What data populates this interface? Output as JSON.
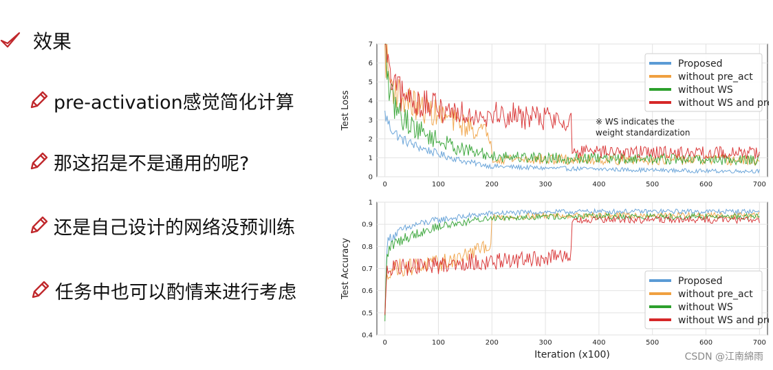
{
  "heading": {
    "text": "效果"
  },
  "bullets": [
    {
      "text": "pre-activation感觉简化计算"
    },
    {
      "text": "那这招是不是通用的呢?"
    },
    {
      "text": "还是自己设计的网络没预训练"
    },
    {
      "text": "任务中也可以酌情来进行考虑"
    }
  ],
  "watermark": "CSDN @江南綿雨",
  "colors": {
    "Proposed": "#5b9bd5",
    "without pre_act": "#f0a040",
    "without WS": "#2ca02c",
    "without WS and pre_act": "#d62728",
    "icon": "#c0282c"
  },
  "chart_data": [
    {
      "type": "line",
      "ylabel": "Test Loss",
      "xlabel": "",
      "xlim": [
        -15,
        715
      ],
      "ylim": [
        0,
        7
      ],
      "xticks": [
        0,
        100,
        200,
        300,
        400,
        500,
        600,
        700
      ],
      "yticks": [
        0,
        1,
        2,
        3,
        4,
        5,
        6,
        7
      ],
      "grid": true,
      "legend": "top-right",
      "annotation": [
        "※ WS indicates the",
        "weight standardization"
      ],
      "series": [
        {
          "name": "Proposed",
          "x": [
            0,
            10,
            30,
            60,
            100,
            150,
            200,
            300,
            400,
            500,
            600,
            700
          ],
          "y": [
            3.3,
            2.6,
            2.0,
            1.6,
            1.2,
            0.8,
            0.55,
            0.45,
            0.4,
            0.35,
            0.3,
            0.3
          ]
        },
        {
          "name": "without pre_act",
          "x": [
            0,
            10,
            30,
            60,
            100,
            150,
            199,
            200,
            300,
            400,
            500,
            600,
            700
          ],
          "y": [
            6.8,
            5.0,
            4.2,
            3.7,
            3.3,
            2.7,
            2.2,
            1.0,
            0.9,
            0.9,
            0.9,
            0.9,
            0.85
          ]
        },
        {
          "name": "without WS",
          "x": [
            0,
            10,
            30,
            60,
            100,
            150,
            200,
            300,
            400,
            500,
            600,
            700
          ],
          "y": [
            6.9,
            4.2,
            3.2,
            2.5,
            1.9,
            1.4,
            1.1,
            1.0,
            0.95,
            0.95,
            0.9,
            0.9
          ]
        },
        {
          "name": "without WS and pre_act",
          "x": [
            0,
            10,
            30,
            60,
            100,
            150,
            200,
            300,
            349,
            350,
            400,
            500,
            600,
            700
          ],
          "y": [
            7.0,
            5.0,
            4.3,
            3.9,
            3.6,
            3.4,
            3.3,
            3.1,
            3.0,
            1.3,
            1.3,
            1.3,
            1.25,
            1.3
          ]
        }
      ]
    },
    {
      "type": "line",
      "ylabel": "Test Accuracy",
      "xlabel": "Iteration (x100)",
      "xlim": [
        -15,
        715
      ],
      "ylim": [
        0.4,
        1.0
      ],
      "xticks": [
        0,
        100,
        200,
        300,
        400,
        500,
        600,
        700
      ],
      "yticks": [
        0.4,
        0.5,
        0.6,
        0.7,
        0.8,
        0.9,
        1.0
      ],
      "grid": true,
      "legend": "bottom-right",
      "series": [
        {
          "name": "Proposed",
          "x": [
            0,
            3,
            10,
            30,
            60,
            100,
            150,
            200,
            300,
            400,
            500,
            600,
            700
          ],
          "y": [
            0.45,
            0.8,
            0.84,
            0.87,
            0.9,
            0.92,
            0.935,
            0.95,
            0.955,
            0.958,
            0.958,
            0.958,
            0.958
          ]
        },
        {
          "name": "without pre_act",
          "x": [
            0,
            3,
            10,
            50,
            100,
            150,
            199,
            200,
            300,
            400,
            500,
            600,
            700
          ],
          "y": [
            0.45,
            0.68,
            0.7,
            0.71,
            0.72,
            0.76,
            0.81,
            0.93,
            0.94,
            0.94,
            0.94,
            0.94,
            0.94
          ]
        },
        {
          "name": "without WS",
          "x": [
            0,
            3,
            10,
            30,
            60,
            100,
            150,
            200,
            300,
            400,
            500,
            600,
            700
          ],
          "y": [
            0.42,
            0.75,
            0.8,
            0.83,
            0.86,
            0.89,
            0.91,
            0.93,
            0.935,
            0.935,
            0.935,
            0.935,
            0.935
          ]
        },
        {
          "name": "without WS and pre_act",
          "x": [
            0,
            3,
            10,
            50,
            100,
            150,
            200,
            300,
            349,
            350,
            400,
            500,
            600,
            700
          ],
          "y": [
            0.45,
            0.68,
            0.7,
            0.71,
            0.715,
            0.73,
            0.73,
            0.745,
            0.76,
            0.915,
            0.92,
            0.92,
            0.92,
            0.92
          ]
        }
      ]
    }
  ]
}
